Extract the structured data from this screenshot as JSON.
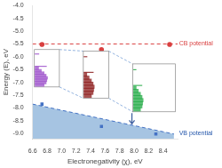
{
  "chart_data": {
    "type": "scatter",
    "xlabel": "Electronegativity (χ), eV",
    "ylabel": "Energy (E), eV",
    "xlim": [
      6.6,
      8.6
    ],
    "ylim": [
      -9.2,
      -4.0
    ],
    "xticks": [
      6.6,
      6.8,
      {
        "value": 7.0,
        "label": "7.0"
      },
      7.2,
      7.4,
      7.6,
      7.8,
      {
        "value": 8.0,
        "label": "8.0"
      },
      8.2,
      8.4
    ],
    "yticks": [
      {
        "value": -4.0,
        "label": "-4.0"
      },
      -4.5,
      {
        "value": -5.0,
        "label": "-5.0"
      },
      -5.5,
      {
        "value": -6.0,
        "label": "-6.0"
      },
      -6.5,
      {
        "value": -7.0,
        "label": "-7.0"
      },
      -7.5,
      {
        "value": -8.0,
        "label": "-8.0"
      },
      -8.5,
      {
        "value": -9.0,
        "label": "-9.0"
      }
    ],
    "grid": false,
    "series": [
      {
        "type": "area",
        "color": "#88b0d8",
        "x": [
          6.6,
          8.55
        ],
        "y": [
          -7.85,
          -9.02
        ]
      },
      {
        "type": "line",
        "line_style": "dashed",
        "color": "#d94040",
        "x": [
          6.6,
          8.6
        ],
        "y": [
          -5.5,
          -5.5
        ]
      },
      {
        "type": "line",
        "line_style": "dashed",
        "color": "#4472c4",
        "x": [
          6.6,
          8.55
        ],
        "y": [
          -7.85,
          -9.02
        ]
      },
      {
        "type": "scatter",
        "marker": "circle",
        "color": "#d94040",
        "x": [
          6.73,
          7.55,
          8.49
        ],
        "y": [
          -5.52,
          -5.72,
          -5.52
        ]
      },
      {
        "type": "scatter",
        "marker": "square",
        "color": "#4472c4",
        "x": [
          6.73,
          7.55,
          8.3
        ],
        "y": [
          -7.85,
          -8.72,
          -9.02
        ]
      }
    ],
    "annotations": [
      {
        "text": "CB potential",
        "x": 8.62,
        "y": -5.5,
        "color": "#d94040"
      },
      {
        "text": "VB potential",
        "x": 8.62,
        "y": -9.0,
        "color": "#2255aa"
      }
    ],
    "arrow": {
      "x": 7.97,
      "y_start": -8.2,
      "y_end": -8.62,
      "color": "#4060a0"
    },
    "insets": [
      {
        "x": [
          6.625,
          6.97
        ],
        "y": [
          -7.18,
          -5.72
        ],
        "color": "#9b4dca"
      },
      {
        "x": [
          7.3,
          7.65
        ],
        "y": [
          -7.62,
          -5.78
        ],
        "color": "#8b1a1a"
      },
      {
        "x": [
          7.98,
          8.57
        ],
        "y": [
          -8.15,
          -6.28
        ],
        "color": "#22aa44"
      }
    ],
    "connector_color": "#6090d0"
  }
}
